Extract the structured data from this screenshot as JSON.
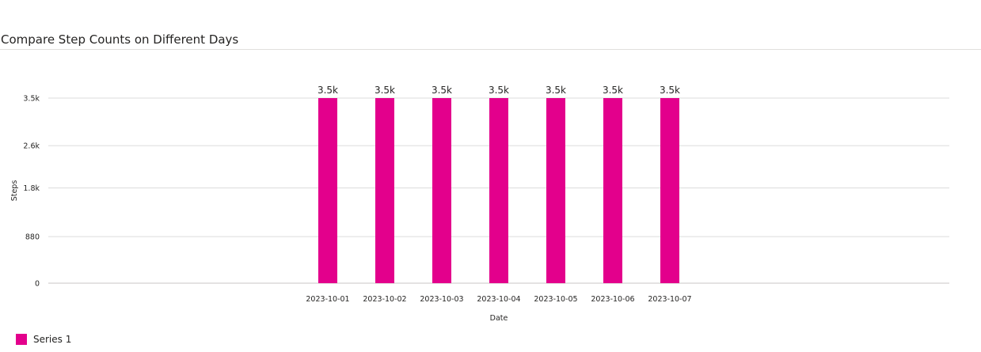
{
  "chart_data": {
    "type": "bar",
    "title": "Compare Step Counts on Different Days",
    "xlabel": "Date",
    "ylabel": "Steps",
    "categories": [
      "2023-10-01",
      "2023-10-02",
      "2023-10-03",
      "2023-10-04",
      "2023-10-05",
      "2023-10-06",
      "2023-10-07"
    ],
    "series": [
      {
        "name": "Series 1",
        "values": [
          3500,
          3500,
          3500,
          3500,
          3500,
          3500,
          3500
        ],
        "data_labels": [
          "3.5k",
          "3.5k",
          "3.5k",
          "3.5k",
          "3.5k",
          "3.5k",
          "3.5k"
        ],
        "color": "#e3008c"
      }
    ],
    "yticks": [
      0,
      880,
      1800,
      2600,
      3500
    ],
    "ytick_labels": [
      "0",
      "880",
      "1.8k",
      "2.6k",
      "3.5k"
    ],
    "ylim": [
      0,
      3500
    ],
    "grid": true,
    "legend": "bottom-left"
  }
}
